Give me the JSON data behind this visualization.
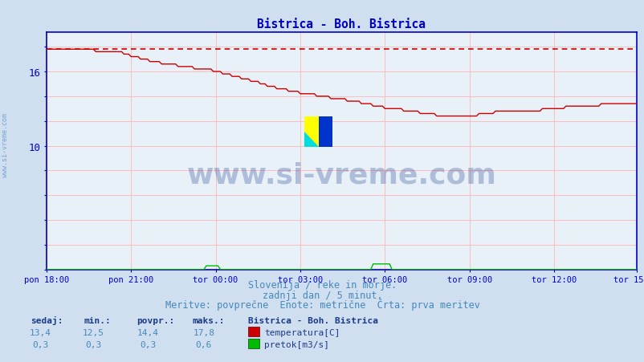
{
  "title": "Bistrica - Boh. Bistrica",
  "title_color": "#0000cc",
  "bg_color": "#d0dff0",
  "plot_bg_color": "#e8f0f8",
  "grid_color": "#ffbbbb",
  "axis_color": "#0000cc",
  "ylabel_temp": "temperatura[C]",
  "ylabel_flow": "pretok[m3/s]",
  "xticklabels": [
    "pon 18:00",
    "pon 21:00",
    "tor 00:00",
    "tor 03:00",
    "tor 06:00",
    "tor 09:00",
    "tor 12:00",
    "tor 15:00"
  ],
  "yticks": [
    0,
    2,
    4,
    6,
    8,
    10,
    12,
    14,
    16,
    18
  ],
  "ytick_labels_show": [
    10,
    16
  ],
  "ymin": 0,
  "ymax": 19.2,
  "xmin": 0,
  "xmax": 251,
  "temp_color": "#cc0000",
  "flow_color": "#00bb00",
  "max_temp": 17.8,
  "watermark": "www.si-vreme.com",
  "watermark_color": "#1a3a8a",
  "side_watermark_color": "#6699cc",
  "subtitle1": "Slovenija / reke in morje.",
  "subtitle2": "zadnji dan / 5 minut.",
  "subtitle3": "Meritve: povprečne  Enote: metrične  Črta: prva meritev",
  "subtitle_color": "#4488bb",
  "legend_title": "Bistrica - Boh. Bistrica",
  "legend_color": "#1a3a8a",
  "stats_label_color": "#1a3a8a",
  "stats_value_color": "#4488bb",
  "sedaj_temp": "13,4",
  "min_temp": "12,5",
  "povpr_temp": "14,4",
  "maks_temp": "17,8",
  "sedaj_flow": "0,3",
  "min_flow": "0,3",
  "povpr_flow": "0,3",
  "maks_flow": "0,6",
  "logo_yellow": "#ffff00",
  "logo_cyan": "#00dddd",
  "logo_blue": "#0033cc"
}
